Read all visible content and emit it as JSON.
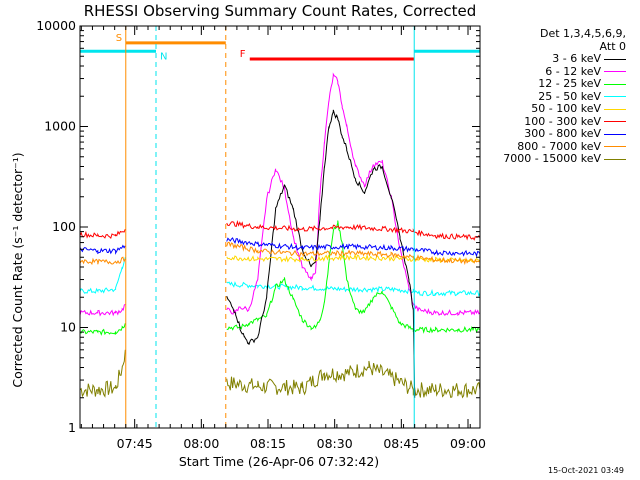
{
  "chart_data": {
    "type": "line",
    "title": "RHESSI Observing Summary Count Rates, Corrected",
    "xlabel": "Start Time (26-Apr-06 07:32:42)",
    "ylabel": "Corrected Count Rate (s⁻¹ detector⁻¹)",
    "yscale": "log",
    "ylim": [
      1,
      10000
    ],
    "xlim_minutes": [
      0,
      90
    ],
    "yticks": [
      {
        "value": 1,
        "label": "1"
      },
      {
        "value": 10,
        "label": "10"
      },
      {
        "value": 100,
        "label": "100"
      },
      {
        "value": 1000,
        "label": "1000"
      },
      {
        "value": 10000,
        "label": "10000"
      }
    ],
    "xticks": [
      {
        "minute": 12.3,
        "label": "07:45"
      },
      {
        "minute": 27.3,
        "label": "08:00"
      },
      {
        "minute": 42.3,
        "label": "08:15"
      },
      {
        "minute": 57.3,
        "label": "08:30"
      },
      {
        "minute": 72.3,
        "label": "08:45"
      },
      {
        "minute": 87.3,
        "label": "09:00"
      }
    ],
    "detectors": "Det 1,3,4,5,6,9,",
    "attenuator": "Att 0",
    "data_gap_minutes": [
      10.3,
      32.8
    ],
    "flags": [
      {
        "label": "S",
        "start": 10.3,
        "end": 32.8,
        "value": 6800,
        "color": "#ff8c00"
      },
      {
        "label": "N",
        "start": 0,
        "end": 17.1,
        "value": 5600,
        "color": "#00e5ee"
      },
      {
        "label": "N",
        "start": 75.2,
        "end": 90,
        "value": 5600,
        "color": "#00e5ee"
      },
      {
        "label": "F",
        "start": 38.2,
        "end": 75.2,
        "value": 4700,
        "color": "#ff0000"
      }
    ],
    "night_boundaries_minutes": [
      0,
      17.1,
      75.2,
      90
    ],
    "saa_boundaries_minutes": [
      10.3,
      32.8
    ],
    "series": [
      {
        "name": "3 - 6 keV",
        "color": "#000000",
        "x": [
          0,
          4,
          8,
          9.5,
          10.2,
          33,
          35,
          36,
          37,
          38,
          40,
          42,
          44,
          46,
          48,
          50,
          52,
          53,
          54,
          55,
          56,
          57,
          58,
          59,
          60,
          62,
          64,
          66,
          68,
          70,
          72,
          74,
          75,
          75.3
        ],
        "y": [
          null,
          null,
          null,
          null,
          null,
          20,
          14,
          10,
          8,
          7,
          8,
          20,
          150,
          260,
          150,
          60,
          40,
          45,
          120,
          400,
          1000,
          1400,
          1200,
          800,
          600,
          300,
          220,
          380,
          400,
          200,
          80,
          30,
          15,
          2
        ]
      },
      {
        "name": "6 - 12 keV",
        "color": "#ff00ff",
        "x": [
          0,
          4,
          8,
          9.5,
          10.2,
          33,
          35,
          36,
          38,
          40,
          42,
          44,
          46,
          48,
          50,
          52,
          53,
          54,
          55,
          56,
          57,
          58,
          59,
          60,
          62,
          64,
          66,
          68,
          70,
          72,
          74,
          75,
          76,
          80,
          85,
          90
        ],
        "y": [
          14,
          14,
          14,
          15,
          17,
          15,
          14,
          16,
          15,
          30,
          190,
          380,
          240,
          80,
          40,
          30,
          35,
          220,
          700,
          1800,
          3200,
          2800,
          1600,
          1000,
          400,
          260,
          420,
          440,
          200,
          60,
          25,
          17,
          15,
          14,
          14,
          14
        ]
      },
      {
        "name": "12 - 25 keV",
        "color": "#00ff00",
        "x": [
          0,
          4,
          8,
          9.5,
          10.2,
          33,
          36,
          38,
          40,
          42,
          44,
          46,
          48,
          50,
          52,
          53,
          54,
          55,
          56,
          57,
          58,
          59,
          60,
          62,
          64,
          66,
          68,
          70,
          72,
          74,
          75,
          76,
          80,
          85,
          90
        ],
        "y": [
          9,
          9,
          9,
          10,
          11,
          10,
          10,
          11,
          12,
          13,
          25,
          30,
          19,
          12,
          10,
          10,
          12,
          18,
          45,
          90,
          110,
          70,
          30,
          15,
          14,
          20,
          23,
          16,
          11,
          10,
          9.5,
          9.5,
          9.5,
          9.5,
          9.5
        ]
      },
      {
        "name": "25 - 50 keV",
        "color": "#00ffff",
        "x": [
          0,
          4,
          8,
          9.5,
          10.2,
          33,
          40,
          50,
          60,
          70,
          75,
          76,
          80,
          85,
          90
        ],
        "y": [
          23,
          23,
          24,
          40,
          50,
          27,
          26,
          25,
          24,
          24,
          23,
          22,
          22,
          22,
          22
        ]
      },
      {
        "name": "50 - 100 keV",
        "color": "#ffd700",
        "x": [
          0,
          10.2,
          33,
          40,
          50,
          60,
          70,
          75,
          80,
          90
        ],
        "y": [
          null,
          null,
          50,
          48,
          48,
          50,
          49,
          48,
          47,
          46
        ]
      },
      {
        "name": "100 - 300 keV",
        "color": "#ff0000",
        "x": [
          0,
          4,
          8,
          10.2,
          33,
          40,
          50,
          60,
          70,
          75,
          80,
          85,
          90
        ],
        "y": [
          85,
          82,
          82,
          95,
          110,
          100,
          95,
          100,
          95,
          90,
          82,
          80,
          78
        ]
      },
      {
        "name": "300 - 800 keV",
        "color": "#0000ff",
        "x": [
          0,
          4,
          8,
          10.2,
          33,
          40,
          50,
          60,
          70,
          75,
          80,
          85,
          90
        ],
        "y": [
          60,
          58,
          58,
          65,
          75,
          68,
          62,
          64,
          62,
          60,
          56,
          55,
          54
        ]
      },
      {
        "name": "800 - 7000 keV",
        "color": "#ff8c00",
        "x": [
          0,
          4,
          8,
          10.2,
          33,
          40,
          50,
          60,
          70,
          75,
          80,
          85,
          90
        ],
        "y": [
          46,
          45,
          45,
          48,
          68,
          58,
          54,
          55,
          53,
          50,
          47,
          46,
          45
        ]
      },
      {
        "name": "7000 - 15000 keV",
        "color": "#808000",
        "x": [
          0,
          4,
          8,
          9.5,
          10.2,
          33,
          40,
          50,
          55,
          60,
          65,
          70,
          75,
          80,
          85,
          90
        ],
        "y": [
          2.4,
          2.4,
          2.5,
          4,
          6,
          2.8,
          2.6,
          2.5,
          3.5,
          3.5,
          4,
          3.2,
          2.4,
          2.4,
          2.4,
          2.4
        ]
      }
    ]
  },
  "timestamp": "15-Oct-2021 03:49"
}
